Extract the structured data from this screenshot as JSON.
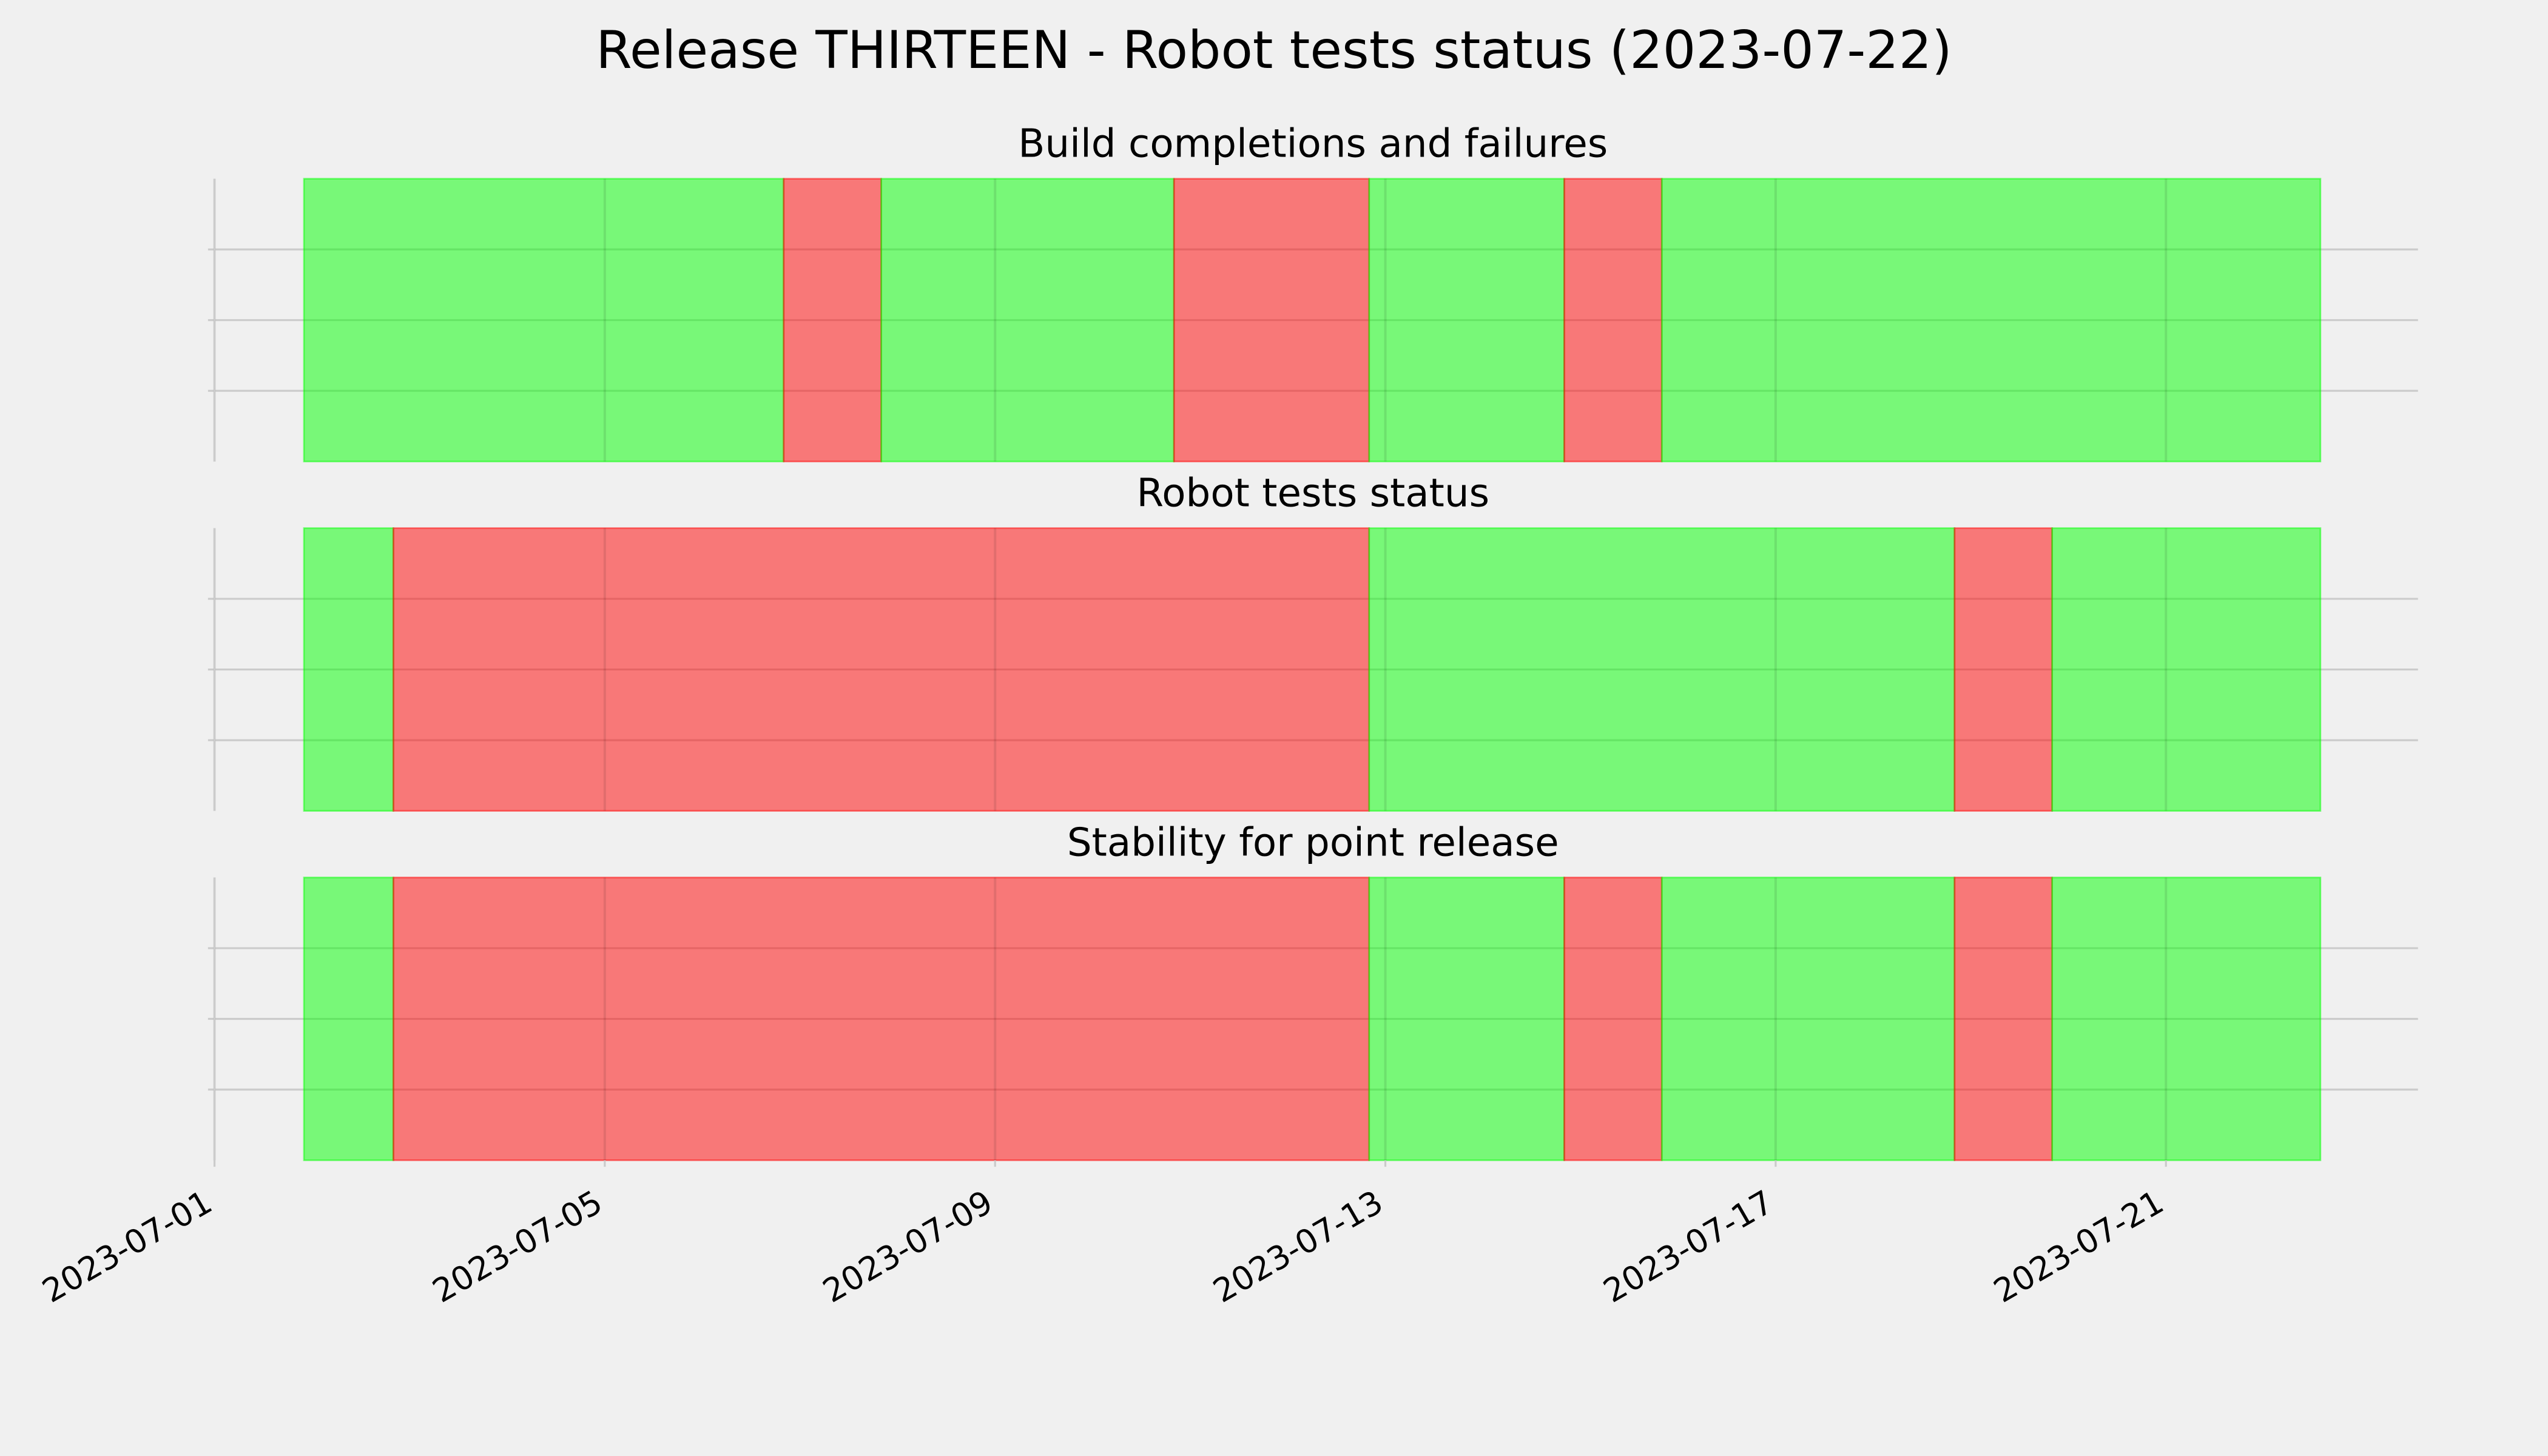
{
  "title": "Release THIRTEEN - Robot tests status (2023-07-22)",
  "chart_data": [
    {
      "type": "span",
      "title": "Build completions and failures",
      "alpha": 0.5,
      "spans": [
        {
          "start": "2023-07-01T22:00",
          "end": "2023-07-06T20:00",
          "color": "#00ff00"
        },
        {
          "start": "2023-07-06T20:00",
          "end": "2023-07-07T20:00",
          "color": "#ff0000"
        },
        {
          "start": "2023-07-07T20:00",
          "end": "2023-07-10T20:00",
          "color": "#00ff00"
        },
        {
          "start": "2023-07-10T20:00",
          "end": "2023-07-12T20:00",
          "color": "#ff0000"
        },
        {
          "start": "2023-07-12T20:00",
          "end": "2023-07-14T20:00",
          "color": "#00ff00"
        },
        {
          "start": "2023-07-14T20:00",
          "end": "2023-07-15T20:00",
          "color": "#ff0000"
        },
        {
          "start": "2023-07-15T20:00",
          "end": "2023-07-22T14:00",
          "color": "#00ff00"
        }
      ],
      "ylim": [
        0,
        1
      ],
      "yticks": [
        0.25,
        0.5,
        0.75
      ],
      "grid": true
    },
    {
      "type": "span",
      "title": "Robot tests status",
      "alpha": 0.5,
      "spans": [
        {
          "start": "2023-07-01T22:00",
          "end": "2023-07-02T20:00",
          "color": "#00ff00"
        },
        {
          "start": "2023-07-02T20:00",
          "end": "2023-07-12T20:00",
          "color": "#ff0000"
        },
        {
          "start": "2023-07-12T20:00",
          "end": "2023-07-18T20:00",
          "color": "#00ff00"
        },
        {
          "start": "2023-07-18T20:00",
          "end": "2023-07-19T20:00",
          "color": "#ff0000"
        },
        {
          "start": "2023-07-19T20:00",
          "end": "2023-07-22T14:00",
          "color": "#00ff00"
        }
      ],
      "ylim": [
        0,
        1
      ],
      "yticks": [
        0.25,
        0.5,
        0.75
      ],
      "grid": true
    },
    {
      "type": "span",
      "title": "Stability for point release",
      "alpha": 0.5,
      "spans": [
        {
          "start": "2023-07-01T22:00",
          "end": "2023-07-02T20:00",
          "color": "#00ff00"
        },
        {
          "start": "2023-07-02T20:00",
          "end": "2023-07-12T20:00",
          "color": "#ff0000"
        },
        {
          "start": "2023-07-12T20:00",
          "end": "2023-07-14T20:00",
          "color": "#00ff00"
        },
        {
          "start": "2023-07-14T20:00",
          "end": "2023-07-15T20:00",
          "color": "#ff0000"
        },
        {
          "start": "2023-07-15T20:00",
          "end": "2023-07-18T20:00",
          "color": "#00ff00"
        },
        {
          "start": "2023-07-18T20:00",
          "end": "2023-07-19T20:00",
          "color": "#ff0000"
        },
        {
          "start": "2023-07-19T20:00",
          "end": "2023-07-22T14:00",
          "color": "#00ff00"
        }
      ],
      "ylim": [
        0,
        1
      ],
      "yticks": [
        0.25,
        0.5,
        0.75
      ],
      "grid": true,
      "xlim": [
        "2023-07-01T00:00",
        "2023-07-23T14:00"
      ],
      "xticks": [
        "2023-07-01",
        "2023-07-05",
        "2023-07-09",
        "2023-07-13",
        "2023-07-17",
        "2023-07-21"
      ]
    }
  ]
}
